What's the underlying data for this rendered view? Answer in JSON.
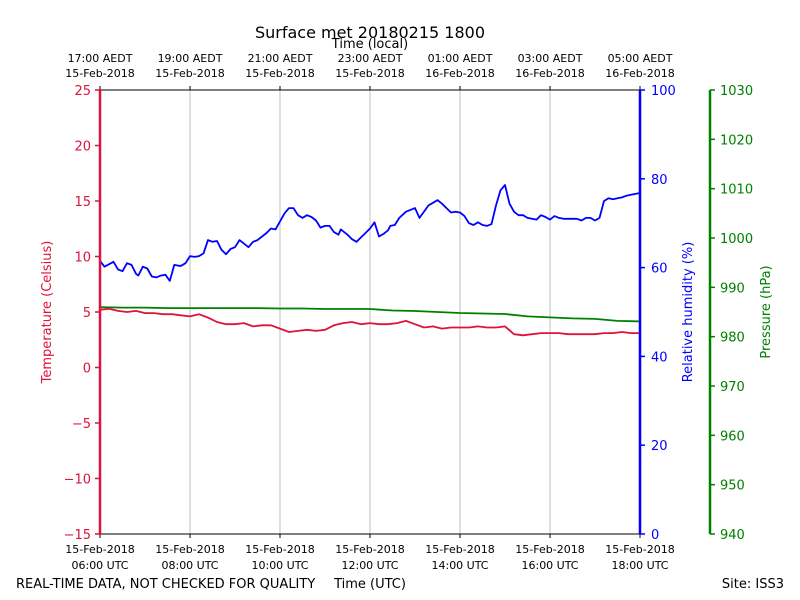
{
  "chart_data": {
    "type": "line",
    "title": "Surface met 20180215 1800",
    "top_axis_title": "Time (local)",
    "xlabel": "Time (UTC)",
    "footer_left": "REAL-TIME DATA, NOT CHECKED FOR QUALITY",
    "footer_right": "Site: ISS3",
    "grid": "vertical",
    "x_range_hours_utc": [
      6,
      18
    ],
    "top_ticks": [
      {
        "h": 6,
        "line1": "17:00 AEDT",
        "line2": "15-Feb-2018"
      },
      {
        "h": 8,
        "line1": "19:00 AEDT",
        "line2": "15-Feb-2018"
      },
      {
        "h": 10,
        "line1": "21:00 AEDT",
        "line2": "15-Feb-2018"
      },
      {
        "h": 12,
        "line1": "23:00 AEDT",
        "line2": "15-Feb-2018"
      },
      {
        "h": 14,
        "line1": "01:00 AEDT",
        "line2": "16-Feb-2018"
      },
      {
        "h": 16,
        "line1": "03:00 AEDT",
        "line2": "16-Feb-2018"
      },
      {
        "h": 18,
        "line1": "05:00 AEDT",
        "line2": "16-Feb-2018"
      }
    ],
    "bottom_ticks": [
      {
        "h": 6,
        "line1": "15-Feb-2018",
        "line2": "06:00 UTC"
      },
      {
        "h": 8,
        "line1": "15-Feb-2018",
        "line2": "08:00 UTC"
      },
      {
        "h": 10,
        "line1": "15-Feb-2018",
        "line2": "10:00 UTC"
      },
      {
        "h": 12,
        "line1": "15-Feb-2018",
        "line2": "12:00 UTC"
      },
      {
        "h": 14,
        "line1": "15-Feb-2018",
        "line2": "14:00 UTC"
      },
      {
        "h": 16,
        "line1": "15-Feb-2018",
        "line2": "16:00 UTC"
      },
      {
        "h": 18,
        "line1": "15-Feb-2018",
        "line2": "18:00 UTC"
      }
    ],
    "axes": {
      "temperature": {
        "label": "Temperature (Celsius)",
        "range": [
          -15,
          25
        ],
        "ticks": [
          25,
          20,
          15,
          10,
          5,
          0,
          -5,
          -10,
          -15
        ],
        "tick_labels": [
          "25",
          "20",
          "15",
          "10",
          "5",
          "0",
          "−5",
          "−10",
          "−15"
        ],
        "color": "#dc143c"
      },
      "humidity": {
        "label": "Relative humidity (%)",
        "range": [
          0,
          100
        ],
        "ticks": [
          100,
          80,
          60,
          40,
          20,
          0
        ],
        "tick_labels": [
          "100",
          "80",
          "60",
          "40",
          "20",
          "0"
        ],
        "color": "#0000ff"
      },
      "pressure": {
        "label": "Pressure (hPa)",
        "range": [
          940,
          1030
        ],
        "ticks": [
          1030,
          1020,
          1010,
          1000,
          990,
          980,
          970,
          960,
          950,
          940
        ],
        "tick_labels": [
          "1030",
          "1020",
          "1010",
          "1000",
          "990",
          "980",
          "970",
          "960",
          "950",
          "940"
        ],
        "color": "#008000"
      }
    },
    "series": [
      {
        "name": "Relative humidity",
        "axis": "humidity",
        "color": "#0000ff",
        "x": [
          6.0,
          6.1,
          6.3,
          6.4,
          6.5,
          6.6,
          6.7,
          6.8,
          6.85,
          6.95,
          7.05,
          7.15,
          7.25,
          7.35,
          7.45,
          7.55,
          7.65,
          7.75,
          7.8,
          7.9,
          8.0,
          8.1,
          8.2,
          8.3,
          8.4,
          8.5,
          8.6,
          8.7,
          8.8,
          8.9,
          9.0,
          9.1,
          9.3,
          9.4,
          9.5,
          9.7,
          9.8,
          9.9,
          10.0,
          10.1,
          10.2,
          10.3,
          10.4,
          10.5,
          10.6,
          10.7,
          10.8,
          10.9,
          11.0,
          11.1,
          11.2,
          11.3,
          11.35,
          11.5,
          11.6,
          11.7,
          11.8,
          11.9,
          12.0,
          12.1,
          12.2,
          12.3,
          12.4,
          12.45,
          12.55,
          12.65,
          12.8,
          13.0,
          13.1,
          13.3,
          13.4,
          13.5,
          13.6,
          13.7,
          13.8,
          13.9,
          14.0,
          14.1,
          14.2,
          14.3,
          14.4,
          14.5,
          14.6,
          14.7,
          14.8,
          14.9,
          15.0,
          15.1,
          15.2,
          15.3,
          15.4,
          15.5,
          15.6,
          15.7,
          15.8,
          15.9,
          16.0,
          16.1,
          16.2,
          16.3,
          16.4,
          16.5,
          16.6,
          16.7,
          16.8,
          16.9,
          17.0,
          17.1,
          17.2,
          17.3,
          17.4,
          17.5,
          17.6,
          17.7,
          17.8,
          17.9,
          18.0
        ],
        "values": [
          61.5,
          60.2,
          61.3,
          59.6,
          59.2,
          61.0,
          60.6,
          58.6,
          58.2,
          60.2,
          59.8,
          58.0,
          57.8,
          58.2,
          58.4,
          57.0,
          60.6,
          60.4,
          60.4,
          61.0,
          62.6,
          62.4,
          62.6,
          63.2,
          66.2,
          65.8,
          66.0,
          64.0,
          63.0,
          64.2,
          64.6,
          66.2,
          64.6,
          65.8,
          66.2,
          67.8,
          68.8,
          68.6,
          70.4,
          72.2,
          73.4,
          73.4,
          71.8,
          71.2,
          71.8,
          71.4,
          70.6,
          69.0,
          69.4,
          69.4,
          68.0,
          67.4,
          68.6,
          67.4,
          66.4,
          65.8,
          66.8,
          67.8,
          68.8,
          70.2,
          67.0,
          67.6,
          68.4,
          69.4,
          69.6,
          71.2,
          72.6,
          73.4,
          71.2,
          74.0,
          74.6,
          75.2,
          74.4,
          73.4,
          72.4,
          72.6,
          72.4,
          71.6,
          70.0,
          69.6,
          70.2,
          69.6,
          69.4,
          69.8,
          74.0,
          77.4,
          78.6,
          74.4,
          72.6,
          71.8,
          71.8,
          71.2,
          71.0,
          70.8,
          71.8,
          71.4,
          70.8,
          71.6,
          71.2,
          71.0,
          71.0,
          71.0,
          71.0,
          70.6,
          71.2,
          71.2,
          70.6,
          71.2,
          75.0,
          75.6,
          75.4,
          75.6,
          75.8,
          76.2,
          76.4,
          76.6,
          76.8
        ],
        "note": "values beyond hour 16.9 are near the right axis; plotted values clipped to frame"
      },
      {
        "name": "Pressure",
        "axis": "pressure",
        "color": "#008000",
        "x": [
          6.0,
          6.5,
          7.0,
          7.5,
          8.0,
          8.5,
          9.0,
          9.5,
          10.0,
          10.5,
          11.0,
          11.5,
          12.0,
          12.5,
          13.0,
          13.5,
          14.0,
          14.5,
          15.0,
          15.5,
          16.0,
          16.5,
          17.0,
          17.5,
          18.0
        ],
        "values": [
          986.0,
          985.9,
          985.9,
          985.8,
          985.8,
          985.8,
          985.8,
          985.8,
          985.7,
          985.7,
          985.6,
          985.6,
          985.6,
          985.3,
          985.2,
          985.0,
          984.8,
          984.7,
          984.6,
          984.1,
          983.9,
          983.7,
          983.6,
          983.2,
          983.1
        ]
      },
      {
        "name": "Temperature",
        "axis": "temperature",
        "color": "#dc143c",
        "x": [
          6.0,
          6.2,
          6.4,
          6.6,
          6.8,
          7.0,
          7.2,
          7.4,
          7.6,
          7.8,
          8.0,
          8.2,
          8.4,
          8.6,
          8.8,
          9.0,
          9.2,
          9.4,
          9.6,
          9.8,
          10.0,
          10.2,
          10.4,
          10.6,
          10.8,
          11.0,
          11.2,
          11.4,
          11.6,
          11.8,
          12.0,
          12.2,
          12.4,
          12.6,
          12.8,
          13.0,
          13.2,
          13.4,
          13.6,
          13.8,
          14.0,
          14.2,
          14.4,
          14.6,
          14.8,
          15.0,
          15.2,
          15.4,
          15.6,
          15.8,
          16.0,
          16.2,
          16.4,
          16.6,
          16.8,
          17.0,
          17.2,
          17.4,
          17.6,
          17.8,
          18.0
        ],
        "values": [
          5.2,
          5.3,
          5.1,
          5.0,
          5.1,
          4.9,
          4.9,
          4.8,
          4.8,
          4.7,
          4.6,
          4.8,
          4.5,
          4.1,
          3.9,
          3.9,
          4.0,
          3.7,
          3.8,
          3.8,
          3.5,
          3.2,
          3.3,
          3.4,
          3.3,
          3.4,
          3.8,
          4.0,
          4.1,
          3.9,
          4.0,
          3.9,
          3.9,
          4.0,
          4.2,
          3.9,
          3.6,
          3.7,
          3.5,
          3.6,
          3.6,
          3.6,
          3.7,
          3.6,
          3.6,
          3.7,
          3.0,
          2.9,
          3.0,
          3.1,
          3.1,
          3.1,
          3.0,
          3.0,
          3.0,
          3.0,
          3.1,
          3.1,
          3.2,
          3.1,
          3.1
        ]
      }
    ]
  }
}
